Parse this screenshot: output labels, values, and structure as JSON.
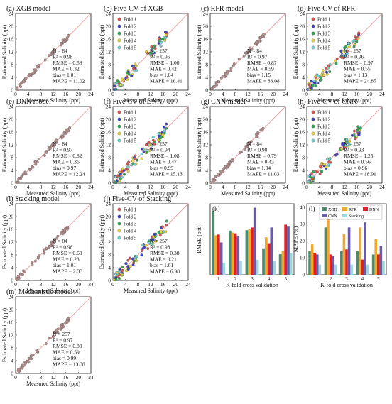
{
  "colors": {
    "point_default": "#b58e8e",
    "one_to_one": "#f09a9a",
    "fold": [
      "#d9534f",
      "#3b3fc2",
      "#2fa84f",
      "#e8d53a",
      "#6fd4d4"
    ],
    "bar": [
      "#4f8a6e",
      "#f0a832",
      "#e02020",
      "#6a5aa8",
      "#9fd6dc"
    ]
  },
  "fold_legend": [
    "Fold 1",
    "Fold 2",
    "Fold 3",
    "Fold 4",
    "Fold 5"
  ],
  "chart_data": [
    {
      "id": "a",
      "type": "scatter",
      "title": "(a) XGB model",
      "xlabel": "Measured Salinity (ppt)",
      "ylabel": "Estimated Salinity (ppt)",
      "xlim": [
        0,
        24
      ],
      "ylim": [
        0,
        24
      ],
      "xticks": [
        "0",
        "4",
        "8",
        "12",
        "16",
        "20",
        "24"
      ],
      "yticks": [
        "0",
        "4",
        "8",
        "12",
        "16",
        "20",
        "24"
      ],
      "stats": [
        "N = 84",
        "R² = 0.98",
        "RMSE = 0.58",
        "MAE = 0.32",
        "bias = 1.01",
        "MAPE = 11.02"
      ]
    },
    {
      "id": "b",
      "type": "scatter",
      "title": "(b) Five-CV of XGB",
      "xlabel": "Measured Salinity (ppt)",
      "ylabel": "Estimated Salinity (ppt)",
      "xlim": [
        0,
        24
      ],
      "ylim": [
        0,
        24
      ],
      "xticks": [
        "0",
        "4",
        "8",
        "12",
        "16",
        "20",
        "24"
      ],
      "yticks": [
        "0",
        "4",
        "8",
        "12",
        "16",
        "20",
        "24"
      ],
      "folds": true,
      "stats": [
        "N = 257",
        "R² = 0.96",
        "RMSE = 1.00",
        "MAE = 0.42",
        "bias = 1.04",
        "MAPE = 16.41"
      ]
    },
    {
      "id": "c",
      "type": "scatter",
      "title": "(c) RFR model",
      "xlabel": "Measured Salinity (ppt)",
      "ylabel": "Estimated Salinity (ppt)",
      "xlim": [
        0,
        24
      ],
      "ylim": [
        0,
        24
      ],
      "xticks": [
        "0",
        "4",
        "8",
        "12",
        "16",
        "20",
        "24"
      ],
      "yticks": [
        "0",
        "4",
        "8",
        "12",
        "16",
        "20",
        "24"
      ],
      "stats": [
        "N = 84",
        "R² = 0.97",
        "RMSE = 0.87",
        "MAE = 0.59",
        "bias = 1.15",
        "MAPE = 83.08"
      ]
    },
    {
      "id": "d",
      "type": "scatter",
      "title": "(d) Five-CV of RFR",
      "xlabel": "Measured Salinity (ppt)",
      "ylabel": "Estimated Salinity (ppt)",
      "xlim": [
        0,
        24
      ],
      "ylim": [
        0,
        24
      ],
      "xticks": [
        "0",
        "4",
        "8",
        "12",
        "16",
        "20",
        "24"
      ],
      "yticks": [
        "0",
        "4",
        "8",
        "12",
        "16",
        "20",
        "24"
      ],
      "folds": true,
      "stats": [
        "N = 257",
        "R² = 0.96",
        "RMSE = 0.97",
        "MAE = 0.55",
        "bias = 1.13",
        "MAPE = 24.85"
      ]
    },
    {
      "id": "e",
      "type": "scatter",
      "title": "(e) DNN model",
      "xlabel": "Measured Salinity (ppt)",
      "ylabel": "Estimated Salinity (ppt)",
      "xlim": [
        0,
        24
      ],
      "ylim": [
        0,
        24
      ],
      "xticks": [
        "0",
        "4",
        "8",
        "12",
        "16",
        "20",
        "24"
      ],
      "yticks": [
        "0",
        "4",
        "8",
        "12",
        "16",
        "20",
        "24"
      ],
      "stats": [
        "N = 84",
        "R² = 0.97",
        "RMSE = 0.82",
        "MAE = 0.36",
        "bias = 0.97",
        "MAPE = 12.24"
      ]
    },
    {
      "id": "f",
      "type": "scatter",
      "title": "(f) Five-CV of DNN",
      "xlabel": "Measured Salinity (ppt)",
      "ylabel": "Estimated Salinity (ppt)",
      "xlim": [
        0,
        24
      ],
      "ylim": [
        0,
        24
      ],
      "xticks": [
        "0",
        "4",
        "8",
        "12",
        "16",
        "20",
        "24"
      ],
      "yticks": [
        "0",
        "4",
        "8",
        "12",
        "16",
        "20",
        "24"
      ],
      "folds": true,
      "stats": [
        "N = 257",
        "R² = 0.94",
        "RMSE = 1.08",
        "MAE = 0.47",
        "bias = 0.99",
        "MAPE = 15.13"
      ]
    },
    {
      "id": "g",
      "type": "scatter",
      "title": "(g) CNN model",
      "xlabel": "Measured Salinity (ppt)",
      "ylabel": "Estimated Salinity (ppt)",
      "xlim": [
        0,
        24
      ],
      "ylim": [
        0,
        24
      ],
      "xticks": [
        "0",
        "4",
        "8",
        "12",
        "16",
        "20",
        "24"
      ],
      "yticks": [
        "0",
        "4",
        "8",
        "12",
        "16",
        "20",
        "24"
      ],
      "stats": [
        "N = 84",
        "R² = 0.98",
        "RMSE = 0.79",
        "MAE = 0.43",
        "bias = 1.04",
        "MAPE = 11.03"
      ]
    },
    {
      "id": "h",
      "type": "scatter",
      "title": "(h) Five-CV of CNN",
      "xlabel": "Measured Salinity (ppt)",
      "ylabel": "Estimated Salinity (ppt)",
      "xlim": [
        0,
        24
      ],
      "ylim": [
        0,
        24
      ],
      "xticks": [
        "0",
        "4",
        "8",
        "12",
        "16",
        "20",
        "24"
      ],
      "yticks": [
        "0",
        "4",
        "8",
        "12",
        "16",
        "20",
        "24"
      ],
      "folds": true,
      "stats": [
        "N = 257",
        "R² = 0.93",
        "RMSE = 1.25",
        "MAE = 0.56",
        "bias = 0.96",
        "MAPE = 18.91"
      ]
    },
    {
      "id": "i",
      "type": "scatter",
      "title": "(i) Stacking model",
      "xlabel": "Measured Salinity (ppt)",
      "ylabel": "Estimated Salinity (ppt)",
      "xlim": [
        0,
        24
      ],
      "ylim": [
        0,
        24
      ],
      "xticks": [
        "0",
        "4",
        "8",
        "12",
        "16",
        "20",
        "24"
      ],
      "yticks": [
        "0",
        "4",
        "8",
        "12",
        "16",
        "20",
        "24"
      ],
      "stats": [
        "N = 84",
        "R² = 0.98",
        "RMSE = 0.60",
        "MAE = 0.23",
        "bias = 1.01",
        "MAPE = 2.33"
      ]
    },
    {
      "id": "j",
      "type": "scatter",
      "title": "(j) Five-CV of Stacking",
      "xlabel": "Measured Salinity (ppt)",
      "ylabel": "Estimated Salinity (ppt)",
      "xlim": [
        0,
        24
      ],
      "ylim": [
        0,
        24
      ],
      "xticks": [
        "0",
        "4",
        "8",
        "12",
        "16",
        "20",
        "24"
      ],
      "yticks": [
        "0",
        "4",
        "8",
        "12",
        "16",
        "20",
        "24"
      ],
      "folds": true,
      "stats": [
        "N = 257",
        "R² = 0.98",
        "RMSE = 0.38",
        "MAE = 0.21",
        "bias = 1.01",
        "MAPE = 6.98"
      ]
    },
    {
      "id": "k",
      "type": "bar",
      "title": "(k)",
      "xlabel": "K-fold cross validation",
      "ylabel": "RMSE (ppt)",
      "ylim": [
        0,
        1.8
      ],
      "categories": [
        "1",
        "2",
        "3",
        "4",
        "5"
      ],
      "series": [
        {
          "name": "XGB",
          "values": [
            1.62,
            1.12,
            1.13,
            0.67,
            0.52
          ]
        },
        {
          "name": "RFR",
          "values": [
            1.0,
            1.07,
            1.15,
            0.95,
            0.6
          ]
        },
        {
          "name": "DNN",
          "values": [
            1.02,
            1.05,
            1.2,
            0.8,
            1.27
          ]
        },
        {
          "name": "CNN",
          "values": [
            0.82,
            0.97,
            1.7,
            1.2,
            1.22
          ]
        },
        {
          "name": "Stacking",
          "values": [
            0.3,
            0.36,
            0.38,
            0.34,
            0.55
          ]
        }
      ]
    },
    {
      "id": "l",
      "type": "bar",
      "title": "(l)",
      "xlabel": "K-fold cross validation",
      "ylabel": "MAPE (%)",
      "ylim": [
        0,
        42
      ],
      "yticks": [
        "0",
        "10",
        "20",
        "30",
        "40"
      ],
      "categories": [
        "1",
        "2",
        "3",
        "4",
        "5"
      ],
      "series": [
        {
          "name": "XGB",
          "values": [
            14,
            28,
            14,
            14,
            12
          ]
        },
        {
          "name": "RFR",
          "values": [
            18,
            40,
            24,
            28,
            21
          ]
        },
        {
          "name": "DNN",
          "values": [
            13,
            12,
            15,
            9,
            12
          ]
        },
        {
          "name": "CNN",
          "values": [
            12,
            11,
            28,
            31,
            17
          ]
        },
        {
          "name": "Stacking",
          "values": [
            6,
            6,
            6,
            6,
            8
          ]
        }
      ]
    },
    {
      "id": "m",
      "type": "scatter",
      "title": "(m) Mechanistic model",
      "xlabel": "Measured Salinity (ppt)",
      "ylabel": "Estimated Salinity (ppt)",
      "xlim": [
        0,
        24
      ],
      "ylim": [
        0,
        24
      ],
      "xticks": [
        "0",
        "4",
        "8",
        "12",
        "16",
        "20",
        "24"
      ],
      "yticks": [
        "0",
        "4",
        "8",
        "12",
        "16",
        "20",
        "24"
      ],
      "stats": [
        "N = 257",
        "R² = 0.97",
        "RMSE = 0.80",
        "MAE = 0.59",
        "bias = 0.99",
        "MAPE = 13.38"
      ]
    }
  ]
}
